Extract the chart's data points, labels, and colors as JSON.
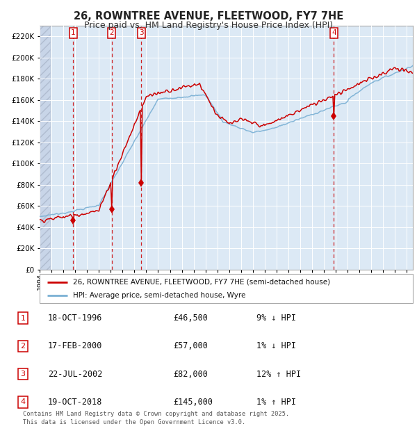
{
  "title": "26, ROWNTREE AVENUE, FLEETWOOD, FY7 7HE",
  "subtitle": "Price paid vs. HM Land Registry's House Price Index (HPI)",
  "title_fontsize": 10.5,
  "subtitle_fontsize": 9,
  "bg_color": "#dce9f5",
  "red_line_color": "#cc0000",
  "blue_line_color": "#7ab0d4",
  "dashed_line_color": "#cc0000",
  "legend_label_red": "26, ROWNTREE AVENUE, FLEETWOOD, FY7 7HE (semi-detached house)",
  "legend_label_blue": "HPI: Average price, semi-detached house, Wyre",
  "footer": "Contains HM Land Registry data © Crown copyright and database right 2025.\nThis data is licensed under the Open Government Licence v3.0.",
  "sales": [
    {
      "num": 1,
      "date_label": "18-OCT-1996",
      "price": 46500,
      "price_str": "£46,500",
      "pct": "9%",
      "dir": "↓",
      "x_year": 1996.8
    },
    {
      "num": 2,
      "date_label": "17-FEB-2000",
      "price": 57000,
      "price_str": "£57,000",
      "pct": "1%",
      "dir": "↓",
      "x_year": 2000.12
    },
    {
      "num": 3,
      "date_label": "22-JUL-2002",
      "price": 82000,
      "price_str": "£82,000",
      "pct": "12%",
      "dir": "↑",
      "x_year": 2002.55
    },
    {
      "num": 4,
      "date_label": "19-OCT-2018",
      "price": 145000,
      "price_str": "£145,000",
      "pct": "1%",
      "dir": "↑",
      "x_year": 2018.8
    }
  ],
  "ylim": [
    0,
    230000
  ],
  "ytick_step": 20000,
  "xlim_start": 1994.0,
  "xlim_end": 2025.5,
  "hatch_end": 1994.9
}
